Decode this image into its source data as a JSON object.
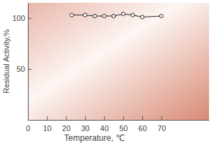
{
  "chart_data": {
    "type": "line",
    "x_label": "Temperature, ℃",
    "y_label": "Residual Activity,%",
    "x": [
      23,
      30,
      35,
      40,
      45,
      50,
      55,
      60,
      70
    ],
    "values": [
      103,
      103,
      102,
      102,
      102,
      104,
      103,
      101,
      102
    ],
    "xlim": [
      0,
      95
    ],
    "ylim": [
      0,
      115
    ],
    "xticks": [
      0,
      10,
      20,
      30,
      40,
      50,
      60,
      70
    ],
    "yticks": [
      50,
      100
    ],
    "color": "#222222",
    "marker": "circle"
  }
}
